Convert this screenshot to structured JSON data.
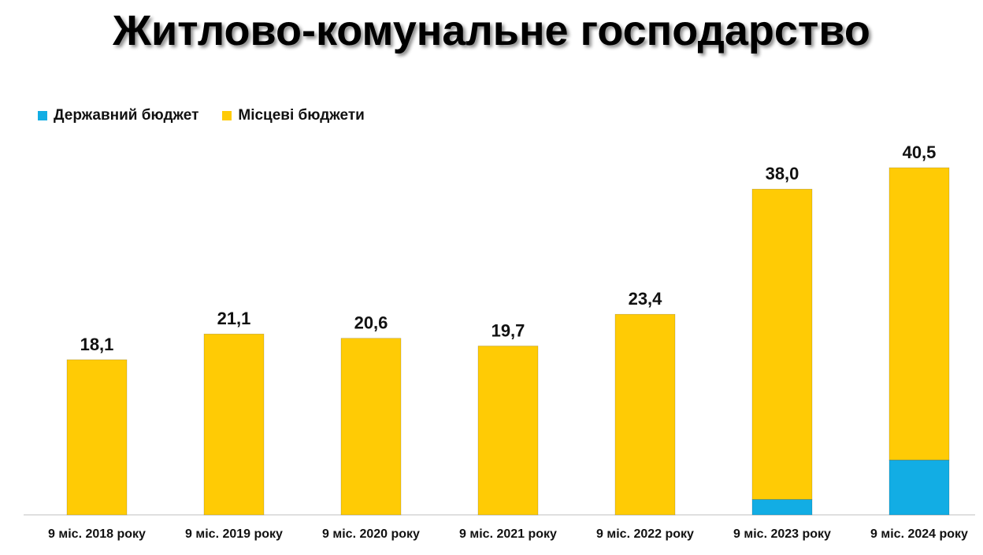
{
  "colors": {
    "state_budget": "#12ADE4",
    "local_budgets": "#FFCB05",
    "axis": "#bfbfbf"
  },
  "chart_data": {
    "type": "bar",
    "stacked": true,
    "title": "Житлово-комунальне господарство",
    "categories": [
      "9 міс. 2018 року",
      "9 міс. 2019 року",
      "9 міс. 2020 року",
      "9 міс. 2021 року",
      "9 міс. 2022 року",
      "9 міс. 2023 року",
      "9 міс. 2024 року"
    ],
    "series": [
      {
        "name": "Державний бюджет",
        "values": [
          0,
          0,
          0,
          0,
          0,
          1.8,
          6.4
        ]
      },
      {
        "name": "Місцеві бюджети",
        "values": [
          18.1,
          21.1,
          20.6,
          19.7,
          23.4,
          36.2,
          34.1
        ]
      }
    ],
    "totals": [
      "18,1",
      "21,1",
      "20,6",
      "19,7",
      "23,4",
      "38,0",
      "40,5"
    ],
    "total_values": [
      18.1,
      21.1,
      20.6,
      19.7,
      23.4,
      38.0,
      40.5
    ],
    "ylim": [
      0,
      45
    ],
    "legend_position": "top-left",
    "grid": false
  }
}
